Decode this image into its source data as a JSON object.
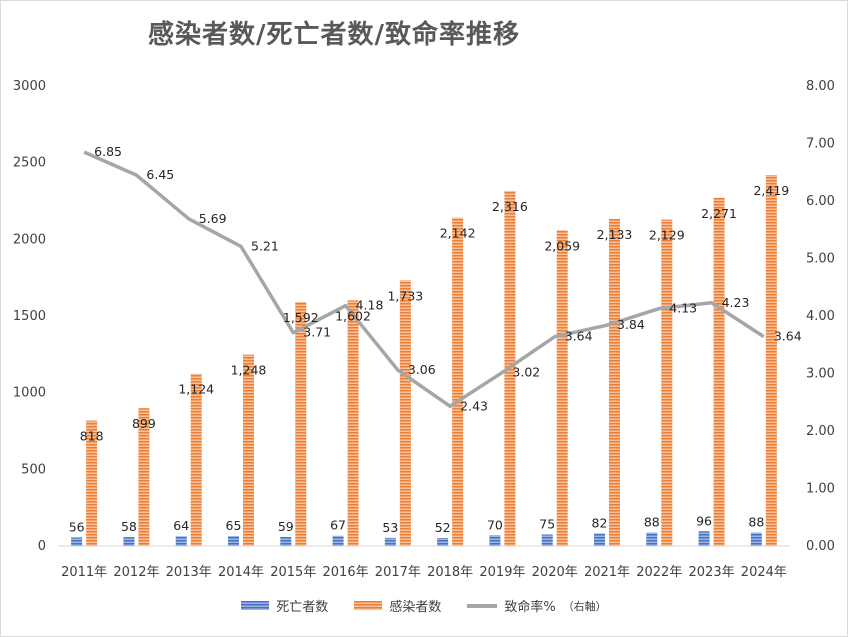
{
  "chart_data": {
    "type": "bar",
    "title": "感染者数/死亡者数/致命率推移",
    "categories": [
      "2011年",
      "2012年",
      "2013年",
      "2014年",
      "2015年",
      "2016年",
      "2017年",
      "2018年",
      "2019年",
      "2020年",
      "2021年",
      "2022年",
      "2023年",
      "2024年"
    ],
    "series": [
      {
        "name": "死亡者数",
        "type": "bar",
        "axis": "left",
        "color": "#4472c4",
        "values": [
          56,
          58,
          64,
          65,
          59,
          67,
          53,
          52,
          70,
          75,
          82,
          88,
          96,
          88
        ],
        "labels": [
          "56",
          "58",
          "64",
          "65",
          "59",
          "67",
          "53",
          "52",
          "70",
          "75",
          "82",
          "88",
          "96",
          "88"
        ]
      },
      {
        "name": "感染者数",
        "type": "bar",
        "axis": "left",
        "color": "#ed7d31",
        "values": [
          818,
          899,
          1124,
          1248,
          1592,
          1602,
          1733,
          2142,
          2316,
          2059,
          2133,
          2129,
          2271,
          2419
        ],
        "labels": [
          "818",
          "899",
          "1,124",
          "1,248",
          "1,592",
          "1,602",
          "1,733",
          "2,142",
          "2,316",
          "2,059",
          "2,133",
          "2,129",
          "2,271",
          "2,419"
        ]
      },
      {
        "name": "致命率%",
        "type": "line",
        "axis": "right",
        "color": "#a6a6a6",
        "values": [
          6.85,
          6.45,
          5.69,
          5.21,
          3.71,
          4.18,
          3.06,
          2.43,
          3.02,
          3.64,
          3.84,
          4.13,
          4.23,
          3.64
        ],
        "labels": [
          "6.85",
          "6.45",
          "5.69",
          "5.21",
          "3.71",
          "4.18",
          "3.06",
          "2.43",
          "3.02",
          "3.64",
          "3.84",
          "4.13",
          "4.23",
          "3.64"
        ]
      }
    ],
    "y_left": {
      "min": 0,
      "max": 3000,
      "ticks": [
        "0",
        "500",
        "1000",
        "1500",
        "2000",
        "2500",
        "3000"
      ]
    },
    "y_right": {
      "min": 0,
      "max": 8,
      "ticks": [
        "0.00",
        "1.00",
        "2.00",
        "3.00",
        "4.00",
        "5.00",
        "6.00",
        "7.00",
        "8.00"
      ]
    },
    "grid": false,
    "legend_position": "bottom"
  },
  "legend": {
    "deaths": "死亡者数",
    "infections": "感染者数",
    "rate": "致命率%",
    "rate_note": "（右軸）"
  }
}
